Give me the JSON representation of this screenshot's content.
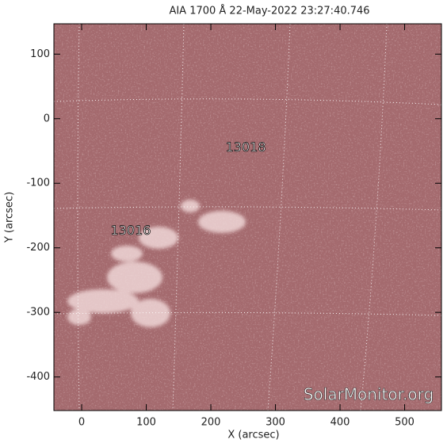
{
  "chart_data": {
    "type": "image",
    "title": "AIA 1700 Å 22-May-2022 23:27:40.746",
    "x_label": "X (arcsec)",
    "y_label": "Y (arcsec)",
    "xlim": [
      -43,
      557
    ],
    "ylim": [
      -452,
      147
    ],
    "xticks": [
      0,
      100,
      200,
      300,
      400,
      500
    ],
    "yticks": [
      100,
      0,
      -100,
      -200,
      -300,
      -400
    ],
    "color": "#a46a6e",
    "annotations": [
      {
        "text": "13018",
        "x": 254,
        "y": -45
      },
      {
        "text": "13016",
        "x": 76,
        "y": -174
      }
    ],
    "watermark": "SolarMonitor.org"
  }
}
